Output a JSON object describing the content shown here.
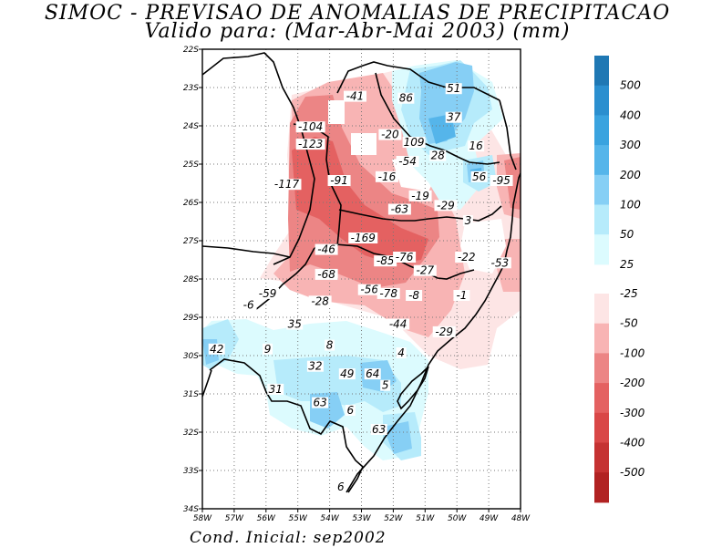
{
  "title": "SIMOC - PREVISAO DE ANOMALIAS DE PRECIPITACAO",
  "subtitle": "Valido para: (Mar-Abr-Mai 2003) (mm)",
  "footer": "Cond. Inicial: sep2002",
  "lat_labels": [
    "22S",
    "23S",
    "24S",
    "25S",
    "26S",
    "27S",
    "28S",
    "29S",
    "30S",
    "31S",
    "32S",
    "33S",
    "34S"
  ],
  "lon_labels": [
    "58W",
    "57W",
    "56W",
    "55W",
    "54W",
    "53W",
    "52W",
    "51W",
    "50W",
    "49W",
    "48W"
  ],
  "map_extent": {
    "lon_min": -58,
    "lon_max": -48,
    "lat_min": -34,
    "lat_max": -22
  },
  "colorbar": {
    "positive": [
      {
        "label": "500",
        "color": "#1f78b4"
      },
      {
        "label": "400",
        "color": "#2b8fcf"
      },
      {
        "label": "300",
        "color": "#3aa3df"
      },
      {
        "label": "200",
        "color": "#55b5ea"
      },
      {
        "label": "100",
        "color": "#86cff5"
      },
      {
        "label": "50",
        "color": "#b6ebfb"
      },
      {
        "label": "25",
        "color": "#dcfbfe"
      }
    ],
    "negative": [
      {
        "label": "-25",
        "color": "#fde5e5"
      },
      {
        "label": "-50",
        "color": "#f8b4b4"
      },
      {
        "label": "-100",
        "color": "#ec8585"
      },
      {
        "label": "-200",
        "color": "#e46161"
      },
      {
        "label": "-300",
        "color": "#d94747"
      },
      {
        "label": "-400",
        "color": "#c53232"
      },
      {
        "label": "-500",
        "color": "#b12222"
      }
    ]
  },
  "value_labels": [
    {
      "text": "-41",
      "lon": -53.2,
      "lat": -23.3
    },
    {
      "text": "86",
      "lon": -51.6,
      "lat": -23.35
    },
    {
      "text": "51",
      "lon": -50.1,
      "lat": -23.1
    },
    {
      "text": "37",
      "lon": -50.1,
      "lat": -23.85
    },
    {
      "text": "-104",
      "lon": -54.6,
      "lat": -24.1
    },
    {
      "text": "-20",
      "lon": -52.1,
      "lat": -24.3
    },
    {
      "text": "-123",
      "lon": -54.6,
      "lat": -24.55
    },
    {
      "text": "109",
      "lon": -51.35,
      "lat": -24.5
    },
    {
      "text": "16",
      "lon": -49.4,
      "lat": -24.6
    },
    {
      "text": "28",
      "lon": -50.6,
      "lat": -24.85
    },
    {
      "text": "-54",
      "lon": -51.55,
      "lat": -25.0
    },
    {
      "text": "56",
      "lon": -49.3,
      "lat": -25.4
    },
    {
      "text": "-95",
      "lon": -48.6,
      "lat": -25.5
    },
    {
      "text": "-117",
      "lon": -55.35,
      "lat": -25.6
    },
    {
      "text": "-91",
      "lon": -53.7,
      "lat": -25.5
    },
    {
      "text": "-16",
      "lon": -52.2,
      "lat": -25.4
    },
    {
      "text": "-19",
      "lon": -51.15,
      "lat": -25.9
    },
    {
      "text": "-29",
      "lon": -50.35,
      "lat": -26.15
    },
    {
      "text": "-63",
      "lon": -51.8,
      "lat": -26.25
    },
    {
      "text": "3",
      "lon": -49.65,
      "lat": -26.55
    },
    {
      "text": "-169",
      "lon": -52.95,
      "lat": -27.0
    },
    {
      "text": "-46",
      "lon": -54.1,
      "lat": -27.3
    },
    {
      "text": "-85",
      "lon": -52.25,
      "lat": -27.6
    },
    {
      "text": "-76",
      "lon": -51.65,
      "lat": -27.5
    },
    {
      "text": "-22",
      "lon": -49.7,
      "lat": -27.5
    },
    {
      "text": "-53",
      "lon": -48.65,
      "lat": -27.65
    },
    {
      "text": "-68",
      "lon": -54.1,
      "lat": -27.95
    },
    {
      "text": "-27",
      "lon": -51.0,
      "lat": -27.85
    },
    {
      "text": "-59",
      "lon": -55.95,
      "lat": -28.45
    },
    {
      "text": "-56",
      "lon": -52.75,
      "lat": -28.35
    },
    {
      "text": "-78",
      "lon": -52.15,
      "lat": -28.45
    },
    {
      "text": "-8",
      "lon": -51.35,
      "lat": -28.5
    },
    {
      "text": "-1",
      "lon": -49.85,
      "lat": -28.5
    },
    {
      "text": "-28",
      "lon": -54.3,
      "lat": -28.65
    },
    {
      "text": "-6",
      "lon": -56.55,
      "lat": -28.75
    },
    {
      "text": "35",
      "lon": -55.1,
      "lat": -29.25
    },
    {
      "text": "-44",
      "lon": -51.85,
      "lat": -29.25
    },
    {
      "text": "-29",
      "lon": -50.4,
      "lat": -29.45
    },
    {
      "text": "8",
      "lon": -54.0,
      "lat": -29.8
    },
    {
      "text": "42",
      "lon": -57.55,
      "lat": -29.9
    },
    {
      "text": "9",
      "lon": -55.95,
      "lat": -29.9
    },
    {
      "text": "4",
      "lon": -51.75,
      "lat": -30.0
    },
    {
      "text": "32",
      "lon": -54.45,
      "lat": -30.35
    },
    {
      "text": "49",
      "lon": -53.45,
      "lat": -30.55
    },
    {
      "text": "64",
      "lon": -52.65,
      "lat": -30.55
    },
    {
      "text": "5",
      "lon": -52.25,
      "lat": -30.85
    },
    {
      "text": "31",
      "lon": -55.7,
      "lat": -30.95
    },
    {
      "text": "63",
      "lon": -54.3,
      "lat": -31.3
    },
    {
      "text": "6",
      "lon": -53.35,
      "lat": -31.5
    },
    {
      "text": "63",
      "lon": -52.45,
      "lat": -32.0
    },
    {
      "text": "6",
      "lon": -53.65,
      "lat": -33.5
    }
  ]
}
